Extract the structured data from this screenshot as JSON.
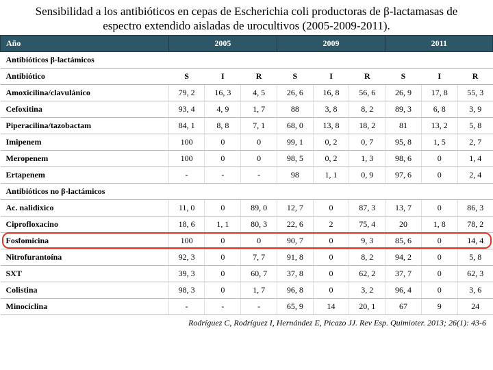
{
  "title": "Sensibilidad a los antibióticos en cepas de Escherichia coli productoras de β-lactamasas de espectro extendido aisladas de urocultivos (2005-2009-2011).",
  "citation": "Rodríguez C, Rodríguez I, Hernández E, Picazo JJ. Rev Esp. Quimioter. 2013; 26(1): 43-6",
  "colors": {
    "header_bg": "#2d5766",
    "header_text": "#ffffff",
    "highlight_border": "#d9372a"
  },
  "year_header": {
    "label": "Año",
    "years": [
      "2005",
      "2009",
      "2011"
    ]
  },
  "sir_labels": [
    "S",
    "I",
    "R"
  ],
  "sections": [
    {
      "title": "Antibióticos β-lactámicos",
      "subheader": "Antibiótico",
      "rows": [
        {
          "name": "Amoxicilina/clavulánico",
          "values": [
            "79, 2",
            "16, 3",
            "4, 5",
            "26, 6",
            "16, 8",
            "56, 6",
            "26, 9",
            "17, 8",
            "55, 3"
          ]
        },
        {
          "name": "Cefoxitina",
          "values": [
            "93, 4",
            "4, 9",
            "1, 7",
            "88",
            "3, 8",
            "8, 2",
            "89, 3",
            "6, 8",
            "3, 9"
          ]
        },
        {
          "name": "Piperacilina/tazobactam",
          "values": [
            "84, 1",
            "8, 8",
            "7, 1",
            "68, 0",
            "13, 8",
            "18, 2",
            "81",
            "13, 2",
            "5, 8"
          ]
        },
        {
          "name": "Imipenem",
          "values": [
            "100",
            "0",
            "0",
            "99, 1",
            "0, 2",
            "0, 7",
            "95, 8",
            "1, 5",
            "2, 7"
          ]
        },
        {
          "name": "Meropenem",
          "values": [
            "100",
            "0",
            "0",
            "98, 5",
            "0, 2",
            "1, 3",
            "98, 6",
            "0",
            "1, 4"
          ]
        },
        {
          "name": "Ertapenem",
          "values": [
            "-",
            "-",
            "-",
            "98",
            "1, 1",
            "0, 9",
            "97, 6",
            "0",
            "2, 4"
          ]
        }
      ]
    },
    {
      "title": "Antibióticos no β-lactámicos",
      "subheader": null,
      "rows": [
        {
          "name": "Ac. nalidixico",
          "values": [
            "11, 0",
            "0",
            "89, 0",
            "12, 7",
            "0",
            "87, 3",
            "13, 7",
            "0",
            "86, 3"
          ]
        },
        {
          "name": "Ciprofloxacino",
          "values": [
            "18, 6",
            "1, 1",
            "80, 3",
            "22, 6",
            "2",
            "75, 4",
            "20",
            "1, 8",
            "78, 2"
          ]
        },
        {
          "name": "Fosfomicina",
          "highlight": true,
          "values": [
            "100",
            "0",
            "0",
            "90, 7",
            "0",
            "9, 3",
            "85, 6",
            "0",
            "14, 4"
          ]
        },
        {
          "name": "Nitrofurantoína",
          "values": [
            "92, 3",
            "0",
            "7, 7",
            "91, 8",
            "0",
            "8, 2",
            "94, 2",
            "0",
            "5, 8"
          ]
        },
        {
          "name": "SXT",
          "values": [
            "39, 3",
            "0",
            "60, 7",
            "37, 8",
            "0",
            "62, 2",
            "37, 7",
            "0",
            "62, 3"
          ]
        },
        {
          "name": "Colistina",
          "values": [
            "98, 3",
            "0",
            "1, 7",
            "96, 8",
            "0",
            "3, 2",
            "96, 4",
            "0",
            "3, 6"
          ]
        },
        {
          "name": "Minociclina",
          "values": [
            "-",
            "-",
            "-",
            "65, 9",
            "14",
            "20, 1",
            "67",
            "9",
            "24"
          ]
        }
      ]
    }
  ]
}
